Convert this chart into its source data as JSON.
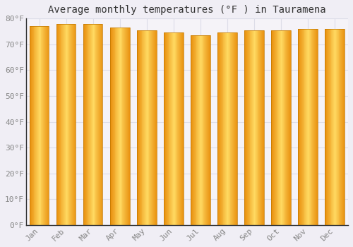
{
  "title": "Average monthly temperatures (°F ) in Tauramena",
  "months": [
    "Jan",
    "Feb",
    "Mar",
    "Apr",
    "May",
    "Jun",
    "Jul",
    "Aug",
    "Sep",
    "Oct",
    "Nov",
    "Dec"
  ],
  "values": [
    77,
    78,
    78,
    76.5,
    75.5,
    74.5,
    73.5,
    74.5,
    75.5,
    75.5,
    76,
    76
  ],
  "bar_color_center": "#FFD060",
  "bar_color_edge": "#E89000",
  "background_color": "#F0EEF5",
  "plot_bg_color": "#F5F3F8",
  "ylim": [
    0,
    80
  ],
  "yticks": [
    0,
    10,
    20,
    30,
    40,
    50,
    60,
    70,
    80
  ],
  "grid_color": "#DDDDE8",
  "title_fontsize": 10,
  "tick_fontsize": 8,
  "tick_color": "#888888",
  "tick_font": "monospace",
  "bar_width": 0.72,
  "bar_gap": 0.28
}
